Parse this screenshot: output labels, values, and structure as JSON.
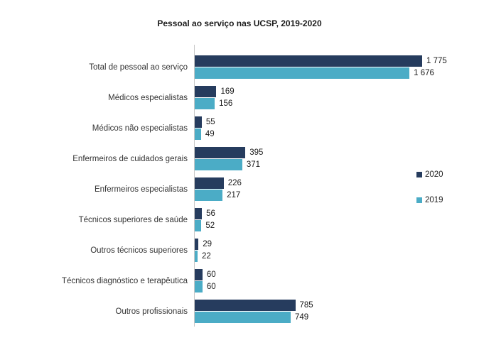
{
  "title": "Pessoal ao serviço nas UCSP, 2019-2020",
  "colors": {
    "series_2020": "#263C5E",
    "series_2019": "#4BACC6",
    "axis_line": "#C8C8C8",
    "background": "#FFFFFF"
  },
  "legend": {
    "position": "right",
    "items": [
      {
        "label": "2020",
        "color": "#263C5E"
      },
      {
        "label": "2019",
        "color": "#4BACC6"
      }
    ]
  },
  "chart_data": {
    "type": "bar",
    "orientation": "horizontal",
    "title": "Pessoal ao serviço nas UCSP, 2019-2020",
    "xlabel": "",
    "ylabel": "",
    "xlim": [
      0,
      1775
    ],
    "grid": false,
    "legend_position": "right",
    "categories": [
      "Total de pessoal ao serviço",
      "Médicos especialistas",
      "Médicos não especialistas",
      "Enfermeiros de cuidados gerais",
      "Enfermeiros especialistas",
      "Técnicos superiores de saúde",
      "Outros técnicos superiores",
      "Técnicos diagnóstico e terapêutica",
      "Outros profissionais"
    ],
    "series": [
      {
        "name": "2020",
        "color": "#263C5E",
        "values": [
          1775,
          169,
          55,
          395,
          226,
          56,
          29,
          60,
          785
        ],
        "labels": [
          "1 775",
          "169",
          "55",
          "395",
          "226",
          "56",
          "29",
          "60",
          "785"
        ]
      },
      {
        "name": "2019",
        "color": "#4BACC6",
        "values": [
          1676,
          156,
          49,
          371,
          217,
          52,
          22,
          60,
          749
        ],
        "labels": [
          "1 676",
          "156",
          "49",
          "371",
          "217",
          "52",
          "22",
          "60",
          "749"
        ]
      }
    ]
  }
}
